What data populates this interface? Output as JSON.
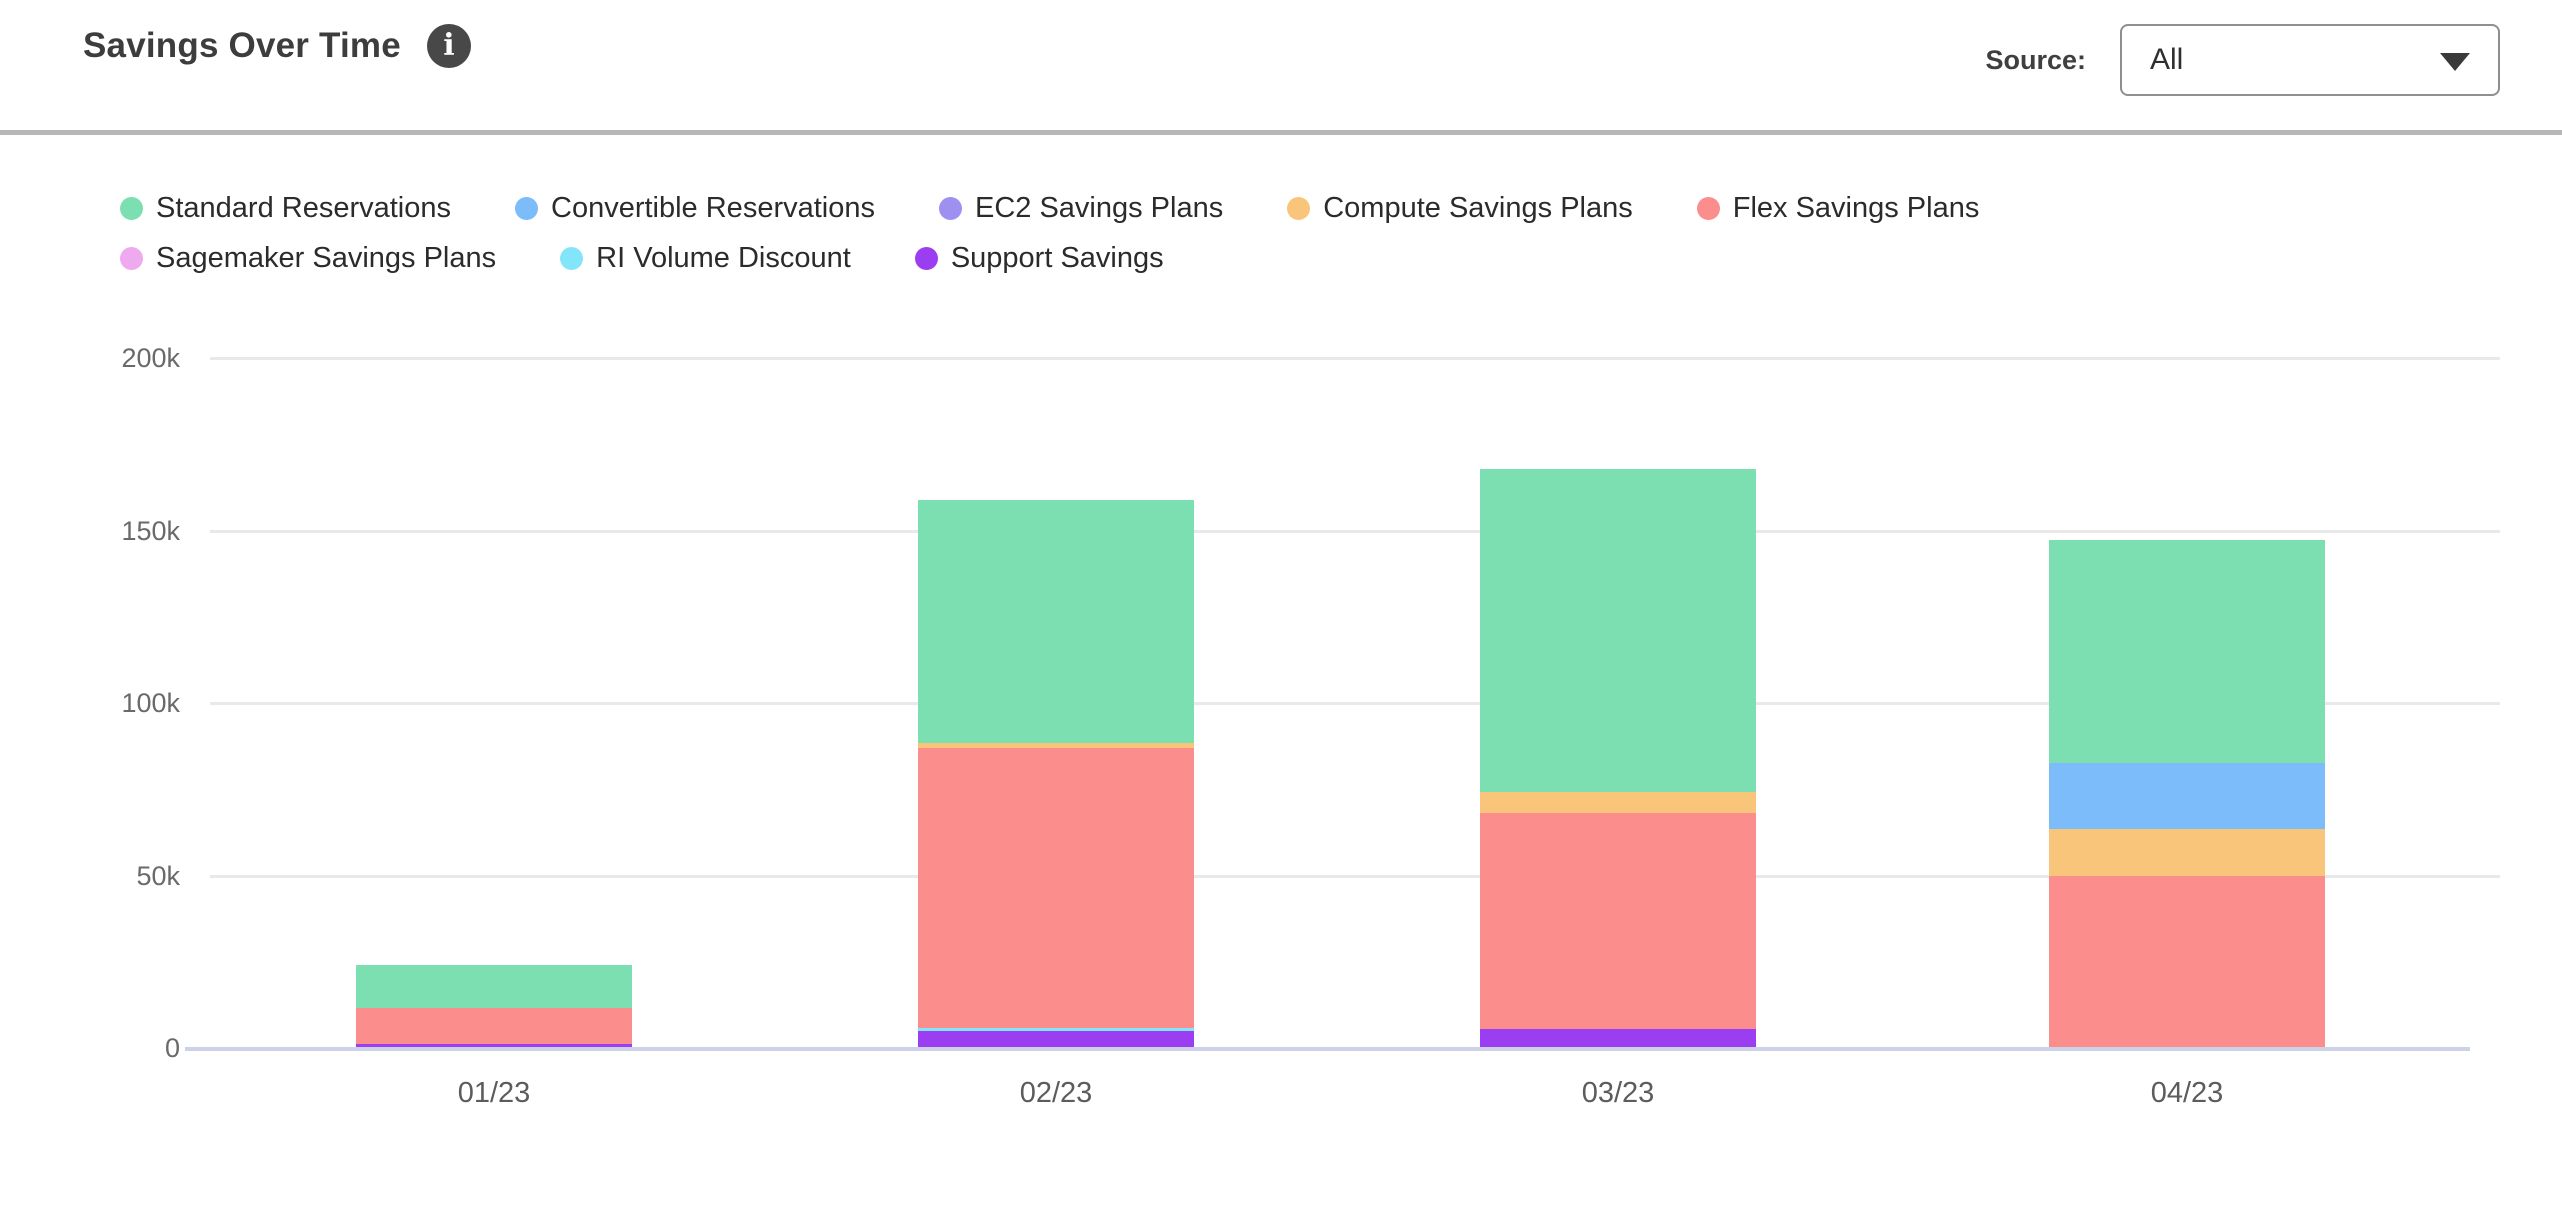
{
  "header": {
    "title": "Savings Over Time",
    "source_label": "Source:",
    "source_value": "All"
  },
  "chart_data": {
    "type": "bar",
    "stacked": true,
    "title": "Savings Over Time",
    "categories": [
      "01/23",
      "02/23",
      "03/23",
      "04/23"
    ],
    "values_unit": "thousands",
    "series": [
      {
        "name": "Standard Reservations",
        "color": "#7CDFB2",
        "values": [
          12.5,
          70.5,
          93.6,
          64.6
        ]
      },
      {
        "name": "Convertible Reservations",
        "color": "#7CBCFA",
        "values": [
          0,
          0,
          0,
          19.1
        ]
      },
      {
        "name": "EC2 Savings Plans",
        "color": "#9D90F0",
        "values": [
          0,
          0,
          0,
          0
        ]
      },
      {
        "name": "Compute Savings Plans",
        "color": "#F8C57B",
        "values": [
          0,
          1.4,
          6.1,
          13.6
        ]
      },
      {
        "name": "Flex Savings Plans",
        "color": "#FC8D8D",
        "values": [
          10.4,
          81.2,
          62.6,
          49.6
        ]
      },
      {
        "name": "Sagemaker Savings Plans",
        "color": "#EFA9EF",
        "values": [
          0,
          0,
          0,
          0
        ]
      },
      {
        "name": "RI Volume Discount",
        "color": "#82E5F9",
        "values": [
          0,
          0.9,
          0,
          0
        ]
      },
      {
        "name": "Support Savings",
        "color": "#9B3DF0",
        "values": [
          0.9,
          4.6,
          5.2,
          0
        ]
      }
    ],
    "y_ticks": [
      "200k",
      "150k",
      "100k",
      "50k",
      "0"
    ],
    "y_tick_values": [
      200,
      150,
      100,
      50,
      0
    ],
    "ylim": [
      0,
      200
    ],
    "grid": true,
    "legend_position": "top",
    "stack_order": "reverse-legend",
    "colors": {
      "gridline": "#E9E9E9",
      "baseline": "#CCD3E8"
    }
  }
}
